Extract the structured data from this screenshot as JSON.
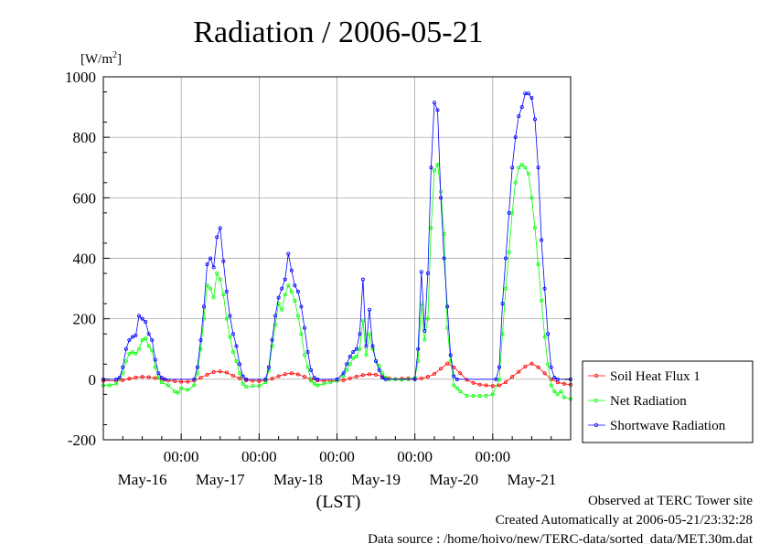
{
  "chart_data": {
    "type": "line",
    "title": "Radiation / 2006-05-21",
    "ylabel": "[W/m",
    "ylabel_sup": "2",
    "ylabel_close": "]",
    "xlabel": "(LST)",
    "ylim": [
      -200,
      1000
    ],
    "yticks": [
      -200,
      0,
      200,
      400,
      600,
      800,
      1000
    ],
    "ytick_labels": [
      "-200",
      "0",
      "200",
      "400",
      "600",
      "800",
      "1000"
    ],
    "xlim_hours": [
      0,
      144
    ],
    "xtick_hours": [
      24,
      48,
      72,
      96,
      120
    ],
    "xtick_labels": [
      "00:00",
      "00:00",
      "00:00",
      "00:00",
      "00:00"
    ],
    "day_labels": [
      "May-16",
      "May-17",
      "May-18",
      "May-19",
      "May-20",
      "May-21"
    ],
    "grid": true,
    "legend_position": "right",
    "series": [
      {
        "name": "Soil Heat Flux 1",
        "color": "#ff0000",
        "points": [
          [
            0,
            -5
          ],
          [
            4,
            -5
          ],
          [
            6,
            -3
          ],
          [
            8,
            2
          ],
          [
            10,
            6
          ],
          [
            12,
            8
          ],
          [
            14,
            7
          ],
          [
            16,
            4
          ],
          [
            18,
            0
          ],
          [
            20,
            -4
          ],
          [
            22,
            -6
          ],
          [
            24,
            -8
          ],
          [
            26,
            -8
          ],
          [
            28,
            -5
          ],
          [
            30,
            5
          ],
          [
            32,
            15
          ],
          [
            34,
            24
          ],
          [
            36,
            26
          ],
          [
            38,
            22
          ],
          [
            40,
            12
          ],
          [
            42,
            3
          ],
          [
            44,
            -3
          ],
          [
            46,
            -5
          ],
          [
            48,
            -6
          ],
          [
            50,
            -4
          ],
          [
            52,
            2
          ],
          [
            54,
            10
          ],
          [
            56,
            17
          ],
          [
            58,
            20
          ],
          [
            60,
            16
          ],
          [
            62,
            8
          ],
          [
            64,
            0
          ],
          [
            66,
            -4
          ],
          [
            68,
            -5
          ],
          [
            70,
            -5
          ],
          [
            72,
            -5
          ],
          [
            74,
            -3
          ],
          [
            76,
            3
          ],
          [
            78,
            9
          ],
          [
            80,
            14
          ],
          [
            82,
            17
          ],
          [
            84,
            15
          ],
          [
            86,
            9
          ],
          [
            88,
            3
          ],
          [
            90,
            1
          ],
          [
            92,
            2
          ],
          [
            94,
            3
          ],
          [
            96,
            2
          ],
          [
            98,
            3
          ],
          [
            100,
            8
          ],
          [
            102,
            18
          ],
          [
            104,
            35
          ],
          [
            106,
            52
          ],
          [
            108,
            40
          ],
          [
            110,
            20
          ],
          [
            112,
            -2
          ],
          [
            114,
            -12
          ],
          [
            116,
            -18
          ],
          [
            118,
            -20
          ],
          [
            120,
            -22
          ],
          [
            122,
            -20
          ],
          [
            124,
            -10
          ],
          [
            126,
            8
          ],
          [
            128,
            25
          ],
          [
            130,
            42
          ],
          [
            132,
            52
          ],
          [
            134,
            40
          ],
          [
            136,
            20
          ],
          [
            138,
            0
          ],
          [
            140,
            -10
          ],
          [
            142,
            -15
          ],
          [
            144,
            -18
          ]
        ]
      },
      {
        "name": "Net Radiation",
        "color": "#00ff00",
        "points": [
          [
            0,
            -20
          ],
          [
            2,
            -20
          ],
          [
            4,
            -15
          ],
          [
            6,
            20
          ],
          [
            7,
            60
          ],
          [
            8,
            85
          ],
          [
            9,
            90
          ],
          [
            10,
            85
          ],
          [
            11,
            100
          ],
          [
            12,
            130
          ],
          [
            13,
            135
          ],
          [
            14,
            110
          ],
          [
            15,
            95
          ],
          [
            16,
            40
          ],
          [
            17,
            5
          ],
          [
            18,
            -10
          ],
          [
            20,
            -20
          ],
          [
            22,
            -40
          ],
          [
            23,
            -45
          ],
          [
            24,
            -30
          ],
          [
            26,
            -35
          ],
          [
            28,
            -20
          ],
          [
            29,
            20
          ],
          [
            30,
            100
          ],
          [
            31,
            200
          ],
          [
            32,
            310
          ],
          [
            33,
            300
          ],
          [
            34,
            270
          ],
          [
            35,
            350
          ],
          [
            36,
            330
          ],
          [
            37,
            280
          ],
          [
            38,
            200
          ],
          [
            39,
            140
          ],
          [
            40,
            90
          ],
          [
            41,
            60
          ],
          [
            42,
            20
          ],
          [
            43,
            -15
          ],
          [
            44,
            -25
          ],
          [
            46,
            -22
          ],
          [
            48,
            -22
          ],
          [
            50,
            -10
          ],
          [
            51,
            30
          ],
          [
            52,
            110
          ],
          [
            53,
            180
          ],
          [
            54,
            250
          ],
          [
            55,
            230
          ],
          [
            56,
            280
          ],
          [
            57,
            310
          ],
          [
            58,
            290
          ],
          [
            59,
            260
          ],
          [
            60,
            210
          ],
          [
            61,
            150
          ],
          [
            62,
            80
          ],
          [
            63,
            40
          ],
          [
            64,
            -5
          ],
          [
            65,
            -15
          ],
          [
            66,
            -20
          ],
          [
            68,
            -15
          ],
          [
            70,
            -10
          ],
          [
            72,
            -5
          ],
          [
            74,
            10
          ],
          [
            75,
            30
          ],
          [
            76,
            50
          ],
          [
            77,
            70
          ],
          [
            78,
            75
          ],
          [
            79,
            100
          ],
          [
            80,
            195
          ],
          [
            81,
            80
          ],
          [
            82,
            150
          ],
          [
            83,
            100
          ],
          [
            84,
            60
          ],
          [
            85,
            45
          ],
          [
            86,
            20
          ],
          [
            87,
            5
          ],
          [
            88,
            0
          ],
          [
            90,
            0
          ],
          [
            92,
            -2
          ],
          [
            94,
            0
          ],
          [
            96,
            5
          ],
          [
            97,
            60
          ],
          [
            98,
            250
          ],
          [
            99,
            130
          ],
          [
            100,
            200
          ],
          [
            101,
            500
          ],
          [
            102,
            690
          ],
          [
            103,
            710
          ],
          [
            104,
            620
          ],
          [
            105,
            480
          ],
          [
            106,
            170
          ],
          [
            107,
            60
          ],
          [
            108,
            -20
          ],
          [
            109,
            -30
          ],
          [
            110,
            -40
          ],
          [
            112,
            -55
          ],
          [
            114,
            -55
          ],
          [
            116,
            -55
          ],
          [
            118,
            -55
          ],
          [
            120,
            -50
          ],
          [
            122,
            0
          ],
          [
            123,
            150
          ],
          [
            124,
            300
          ],
          [
            125,
            420
          ],
          [
            126,
            550
          ],
          [
            127,
            650
          ],
          [
            128,
            700
          ],
          [
            129,
            710
          ],
          [
            130,
            700
          ],
          [
            131,
            680
          ],
          [
            132,
            600
          ],
          [
            133,
            500
          ],
          [
            134,
            380
          ],
          [
            135,
            260
          ],
          [
            136,
            140
          ],
          [
            137,
            50
          ],
          [
            138,
            -20
          ],
          [
            139,
            -40
          ],
          [
            140,
            -50
          ],
          [
            141,
            -40
          ],
          [
            142,
            -60
          ],
          [
            144,
            -65
          ]
        ]
      },
      {
        "name": "Shortwave Radiation",
        "color": "#0000ff",
        "points": [
          [
            0,
            0
          ],
          [
            4,
            0
          ],
          [
            5,
            5
          ],
          [
            6,
            40
          ],
          [
            7,
            100
          ],
          [
            8,
            130
          ],
          [
            9,
            140
          ],
          [
            10,
            145
          ],
          [
            11,
            210
          ],
          [
            12,
            200
          ],
          [
            13,
            190
          ],
          [
            14,
            150
          ],
          [
            15,
            130
          ],
          [
            16,
            65
          ],
          [
            17,
            20
          ],
          [
            18,
            5
          ],
          [
            19,
            0
          ],
          [
            28,
            0
          ],
          [
            29,
            40
          ],
          [
            30,
            130
          ],
          [
            31,
            240
          ],
          [
            32,
            380
          ],
          [
            33,
            400
          ],
          [
            34,
            370
          ],
          [
            35,
            470
          ],
          [
            36,
            500
          ],
          [
            37,
            390
          ],
          [
            38,
            290
          ],
          [
            39,
            210
          ],
          [
            40,
            150
          ],
          [
            41,
            110
          ],
          [
            42,
            50
          ],
          [
            43,
            10
          ],
          [
            44,
            0
          ],
          [
            50,
            0
          ],
          [
            51,
            40
          ],
          [
            52,
            130
          ],
          [
            53,
            210
          ],
          [
            54,
            270
          ],
          [
            55,
            300
          ],
          [
            56,
            330
          ],
          [
            57,
            415
          ],
          [
            58,
            360
          ],
          [
            59,
            310
          ],
          [
            60,
            290
          ],
          [
            61,
            240
          ],
          [
            62,
            170
          ],
          [
            63,
            90
          ],
          [
            64,
            30
          ],
          [
            65,
            5
          ],
          [
            66,
            0
          ],
          [
            72,
            0
          ],
          [
            74,
            20
          ],
          [
            75,
            50
          ],
          [
            76,
            75
          ],
          [
            77,
            90
          ],
          [
            78,
            100
          ],
          [
            79,
            150
          ],
          [
            80,
            330
          ],
          [
            81,
            110
          ],
          [
            82,
            230
          ],
          [
            83,
            110
          ],
          [
            84,
            60
          ],
          [
            85,
            30
          ],
          [
            86,
            5
          ],
          [
            87,
            0
          ],
          [
            96,
            0
          ],
          [
            97,
            100
          ],
          [
            98,
            355
          ],
          [
            99,
            160
          ],
          [
            100,
            350
          ],
          [
            101,
            700
          ],
          [
            102,
            915
          ],
          [
            103,
            890
          ],
          [
            104,
            600
          ],
          [
            105,
            400
          ],
          [
            106,
            240
          ],
          [
            107,
            80
          ],
          [
            108,
            10
          ],
          [
            109,
            0
          ],
          [
            121,
            0
          ],
          [
            122,
            40
          ],
          [
            123,
            250
          ],
          [
            124,
            400
          ],
          [
            125,
            550
          ],
          [
            126,
            700
          ],
          [
            127,
            800
          ],
          [
            128,
            870
          ],
          [
            129,
            900
          ],
          [
            130,
            945
          ],
          [
            131,
            945
          ],
          [
            132,
            930
          ],
          [
            133,
            860
          ],
          [
            134,
            700
          ],
          [
            135,
            460
          ],
          [
            136,
            300
          ],
          [
            137,
            150
          ],
          [
            138,
            40
          ],
          [
            139,
            5
          ],
          [
            140,
            0
          ],
          [
            144,
            0
          ]
        ]
      }
    ]
  },
  "footer": {
    "line1": "Observed at TERC Tower site",
    "line2": "Created Automatically at 2006-05-21/23:32:28",
    "line3": "Data source : /home/hoivo/new/TERC-data/sorted_data/MET.30m.dat"
  }
}
